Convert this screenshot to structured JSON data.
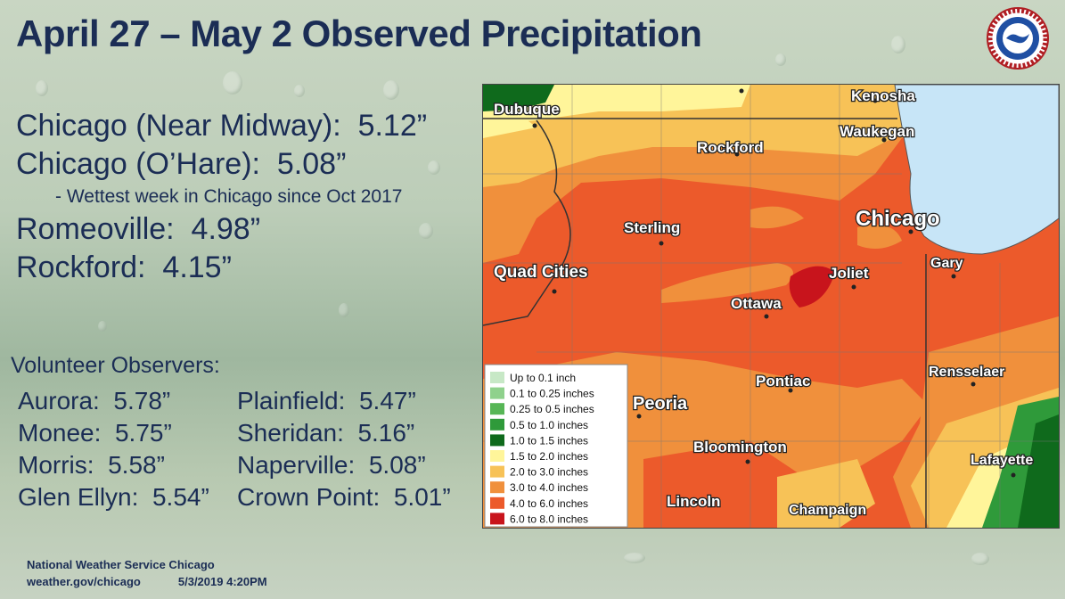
{
  "title": "April 27 – May 2 Observed Precipitation",
  "logo": {
    "icon": "nws-logo-icon",
    "text": "NATIONAL WEATHER SERVICE"
  },
  "totals": [
    {
      "station": "Chicago (Near Midway):",
      "value": "5.12”"
    },
    {
      "station": "Chicago (O’Hare):",
      "value": "5.08”"
    }
  ],
  "note": "- Wettest week in Chicago since Oct 2017",
  "totals_extra": [
    {
      "station": "Romeoville:",
      "value": "4.98”"
    },
    {
      "station": "Rockford:",
      "value": "4.15”"
    }
  ],
  "volunteer_title": "Volunteer Observers:",
  "volunteers_left": [
    {
      "station": "Aurora:",
      "value": "5.78”"
    },
    {
      "station": "Monee:",
      "value": "5.75”"
    },
    {
      "station": "Morris:",
      "value": "5.58”"
    },
    {
      "station": "Glen Ellyn:",
      "value": "5.54”"
    }
  ],
  "volunteers_right": [
    {
      "station": "Plainfield:",
      "value": "5.47”"
    },
    {
      "station": "Sheridan:",
      "value": "5.16”"
    },
    {
      "station": "Naperville:",
      "value": "5.08”"
    },
    {
      "station": "Crown Point:",
      "value": "5.01”"
    }
  ],
  "footer": {
    "office": "National Weather Service Chicago",
    "site": "weather.gov/chicago",
    "timestamp": "5/3/2019 4:20PM"
  },
  "map": {
    "cities": [
      "Kenosha",
      "Dubuque",
      "Waukegan",
      "Rockford",
      "Chicago",
      "Sterling",
      "Gary",
      "Quad Cities",
      "Joliet",
      "Ottawa",
      "Rensselaer",
      "Pontiac",
      "Peoria",
      "Bloomington",
      "Lafayette",
      "Lincoln",
      "Champaign"
    ],
    "legend": [
      {
        "label": "Up to 0.1 inch",
        "color": "#c7e8c6"
      },
      {
        "label": "0.1 to 0.25 inches",
        "color": "#8fd18c"
      },
      {
        "label": "0.25 to 0.5 inches",
        "color": "#57b656"
      },
      {
        "label": "0.5 to 1.0 inches",
        "color": "#2f9a3a"
      },
      {
        "label": "1.0 to 1.5 inches",
        "color": "#0f6a1c"
      },
      {
        "label": "1.5 to 2.0 inches",
        "color": "#fff59a"
      },
      {
        "label": "2.0 to 3.0 inches",
        "color": "#f7c257"
      },
      {
        "label": "3.0 to 4.0 inches",
        "color": "#f0903c"
      },
      {
        "label": "4.0 to 6.0 inches",
        "color": "#ec5a2b"
      },
      {
        "label": "6.0 to 8.0 inches",
        "color": "#c8141c"
      }
    ],
    "lake_color": "#c7e5f7"
  }
}
